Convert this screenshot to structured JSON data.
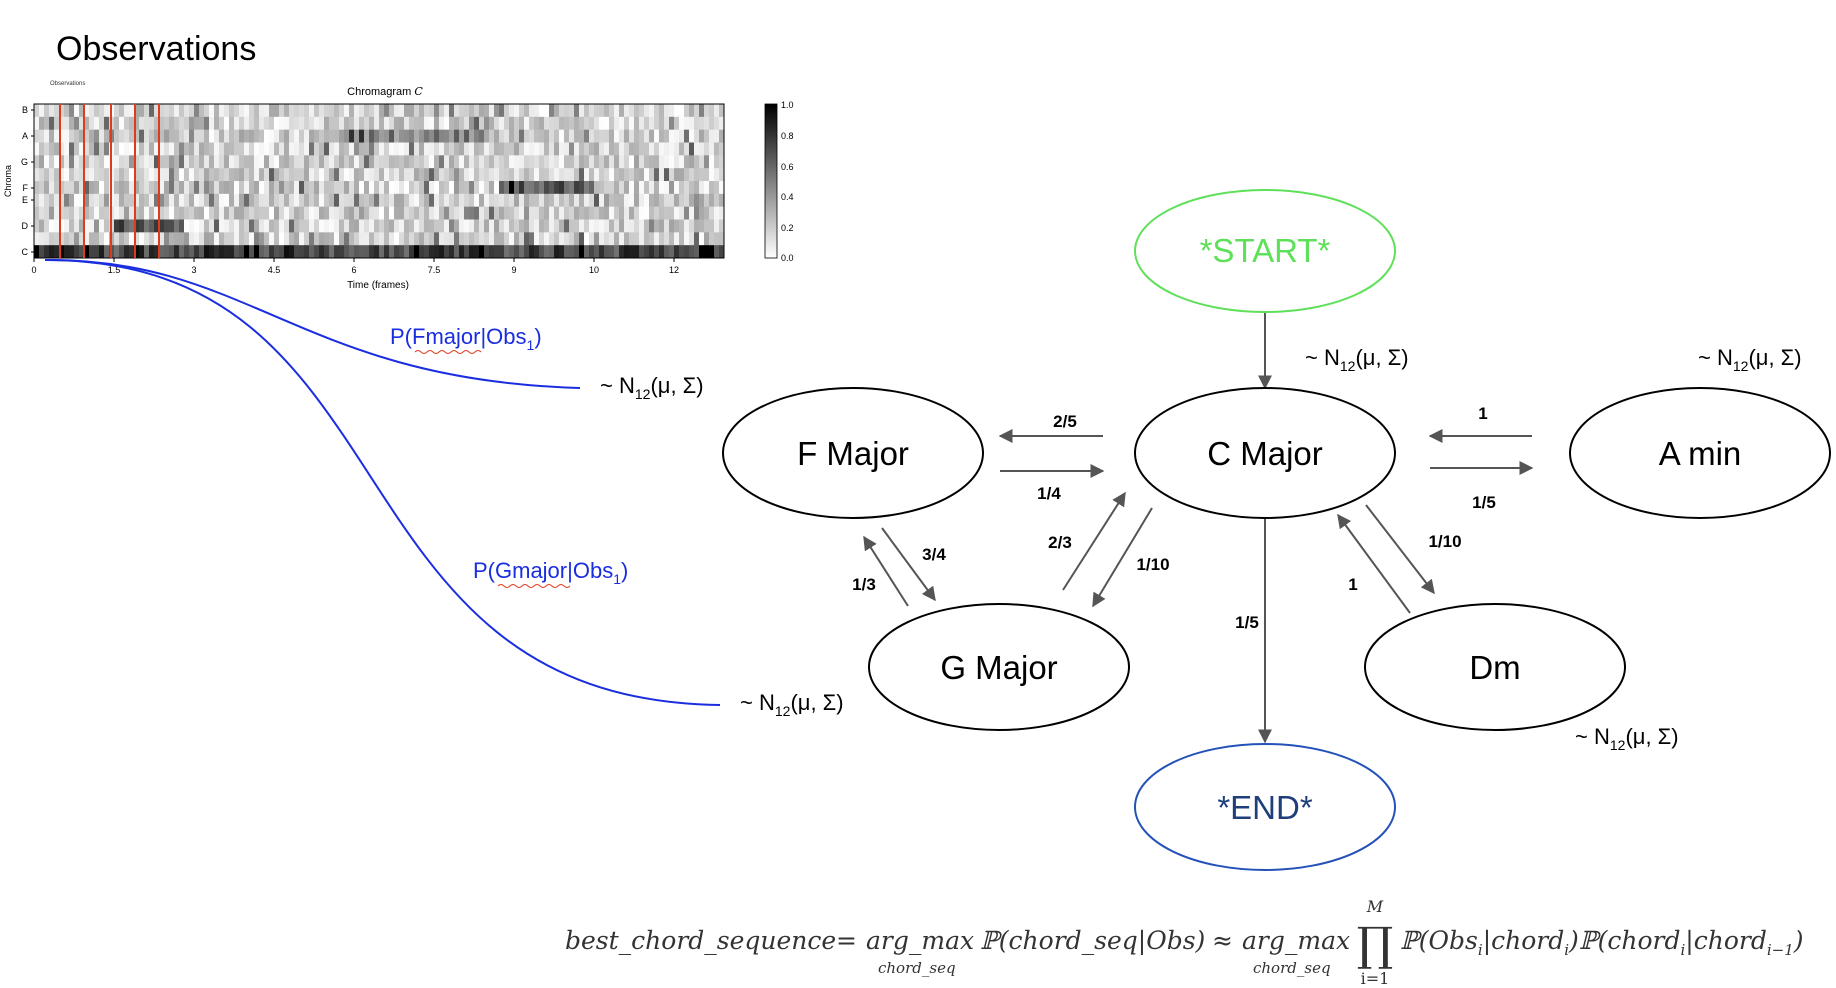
{
  "heading": "Observations",
  "chromagram": {
    "tiny_label": "Observations",
    "title": "Chromagram",
    "title_symbol": "C",
    "ylabel": "Chroma",
    "xlabel": "Time (frames)",
    "yticks": [
      "B",
      "A",
      "G",
      "F",
      "E",
      "D",
      "C"
    ],
    "xticks": [
      "0",
      "1.5",
      "3",
      "4.5",
      "6",
      "7.5",
      "9",
      "10",
      "12"
    ],
    "colorbar_ticks": [
      "1.0",
      "0.8",
      "0.6",
      "0.4",
      "0.2",
      "0.0"
    ],
    "marker_color": "#e03a1e"
  },
  "observation_labels": {
    "fmajor_prefix": "P(",
    "fmajor_word": "Fmajor",
    "fmajor_mid": "|Obs",
    "fmajor_sub": "1",
    "fmajor_suffix": ")",
    "gmajor_prefix": "P(",
    "gmajor_word": "Gmajor",
    "gmajor_mid": "|Obs",
    "gmajor_sub": "1",
    "gmajor_suffix": ")",
    "curve_color": "#1a2ee0"
  },
  "emission": {
    "prefix": "~ N",
    "sub": "12",
    "suffix": "(μ, Σ)"
  },
  "states": {
    "start": "*START*",
    "end": "*END*",
    "c_major": "C Major",
    "f_major": "F Major",
    "a_min": "A min",
    "g_major": "G Major",
    "dm": "Dm"
  },
  "colors": {
    "start": "#5fe05a",
    "end": "#2552b8",
    "end_text": "#1e3f7a",
    "arrow": "#555555"
  },
  "transitions": {
    "c_to_f": "2/5",
    "f_to_c": "1/4",
    "a_to_c": "1",
    "c_to_a": "1/5",
    "f_to_g": "3/4",
    "g_to_f": "1/3",
    "g_to_c": "2/3",
    "c_to_g": "1/10",
    "c_to_dm": "1/10",
    "dm_to_c": "1",
    "c_to_end": "1/5"
  },
  "formula": {
    "lhs": "best_chord_sequence",
    "eq": "=",
    "argmax1": "arg_max",
    "argmax1_sub": "chord_seq",
    "p1": "ℙ(chord_seq|Obs)",
    "approx": "≈",
    "argmax2": "arg_max",
    "argmax2_sub": "chord_seq",
    "prod": "∏",
    "prod_upper": "M",
    "prod_lower": "i=1",
    "p2": "ℙ(Obs",
    "p2_sub": "i",
    "p2_mid": "|chord",
    "p2_sub2": "i",
    "p2_close": ")",
    "p3": "ℙ(chord",
    "p3_sub": "i",
    "p3_mid": "|chord",
    "p3_sub2": "i−1",
    "p3_close": ")"
  }
}
